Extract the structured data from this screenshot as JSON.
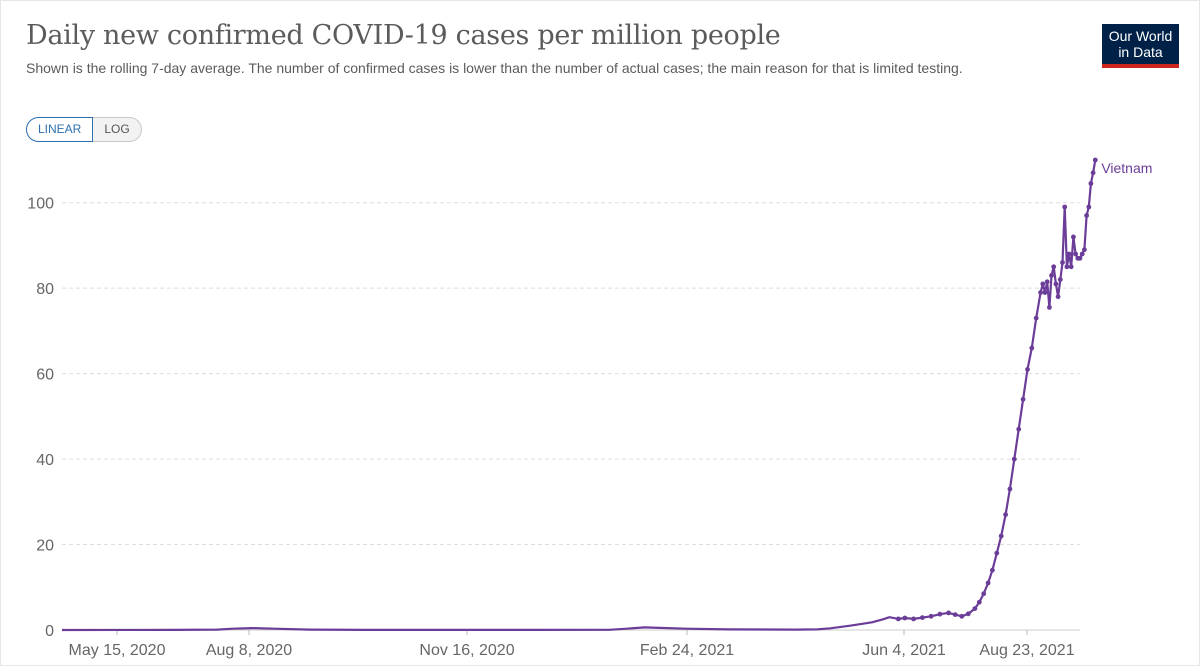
{
  "header": {
    "title": "Daily new confirmed COVID-19 cases per million people",
    "subtitle": "Shown is the rolling 7-day average. The number of confirmed cases is lower than the number of actual cases; the main reason for that is limited testing.",
    "logo_line1": "Our World",
    "logo_line2": "in Data"
  },
  "controls": {
    "linear_label": "LINEAR",
    "log_label": "LOG",
    "selected": "LINEAR"
  },
  "colors": {
    "series": "#6b3d99",
    "grid": "#dddddd",
    "logo_bg": "#002147",
    "logo_accent": "#ce261e",
    "toggle_active": "#2d6fb0"
  },
  "chart_data": {
    "type": "line",
    "title": "Daily new confirmed COVID-19 cases per million people",
    "xlabel": "",
    "ylabel": "",
    "x_axis": {
      "type": "date",
      "range": [
        "2020-05-15",
        "2021-08-23"
      ],
      "tick_labels": [
        "May 15, 2020",
        "Aug 8, 2020",
        "Nov 16, 2020",
        "Feb 24, 2021",
        "Jun 4, 2021",
        "Aug 23, 2021"
      ]
    },
    "y_axis": {
      "ylim": [
        0,
        110
      ],
      "ticks": [
        0,
        20,
        40,
        60,
        80,
        100
      ]
    },
    "grid": true,
    "legend": "end-of-line label",
    "series": [
      {
        "name": "Vietnam",
        "points": [
          [
            "2020-05-15",
            0.0
          ],
          [
            "2020-07-05",
            0.02
          ],
          [
            "2020-07-25",
            0.1
          ],
          [
            "2020-08-01",
            0.3
          ],
          [
            "2020-08-10",
            0.45
          ],
          [
            "2020-08-20",
            0.3
          ],
          [
            "2020-09-05",
            0.1
          ],
          [
            "2020-10-01",
            0.02
          ],
          [
            "2020-12-15",
            0.02
          ],
          [
            "2021-01-20",
            0.05
          ],
          [
            "2021-01-28",
            0.3
          ],
          [
            "2021-02-05",
            0.6
          ],
          [
            "2021-02-12",
            0.5
          ],
          [
            "2021-02-24",
            0.3
          ],
          [
            "2021-03-15",
            0.15
          ],
          [
            "2021-04-15",
            0.1
          ],
          [
            "2021-04-25",
            0.15
          ],
          [
            "2021-05-01",
            0.4
          ],
          [
            "2021-05-10",
            1.0
          ],
          [
            "2021-05-20",
            1.8
          ],
          [
            "2021-05-25",
            2.5
          ],
          [
            "2021-05-28",
            3.0
          ],
          [
            "2021-06-01",
            2.6
          ],
          [
            "2021-06-04",
            2.8
          ],
          [
            "2021-06-08",
            2.6
          ],
          [
            "2021-06-12",
            2.9
          ],
          [
            "2021-06-16",
            3.2
          ],
          [
            "2021-06-20",
            3.7
          ],
          [
            "2021-06-24",
            4.0
          ],
          [
            "2021-06-27",
            3.6
          ],
          [
            "2021-06-30",
            3.2
          ],
          [
            "2021-07-03",
            3.8
          ],
          [
            "2021-07-06",
            5.0
          ],
          [
            "2021-07-08",
            6.5
          ],
          [
            "2021-07-10",
            8.5
          ],
          [
            "2021-07-12",
            11
          ],
          [
            "2021-07-14",
            14
          ],
          [
            "2021-07-16",
            18
          ],
          [
            "2021-07-18",
            22
          ],
          [
            "2021-07-20",
            27
          ],
          [
            "2021-07-22",
            33
          ],
          [
            "2021-07-24",
            40
          ],
          [
            "2021-07-26",
            47
          ],
          [
            "2021-07-28",
            54
          ],
          [
            "2021-07-30",
            61
          ],
          [
            "2021-08-01",
            66
          ],
          [
            "2021-08-03",
            73
          ],
          [
            "2021-08-05",
            79
          ],
          [
            "2021-08-06",
            81
          ],
          [
            "2021-08-07",
            79
          ],
          [
            "2021-08-08",
            81.5
          ],
          [
            "2021-08-09",
            75.5
          ],
          [
            "2021-08-10",
            83
          ],
          [
            "2021-08-11",
            85
          ],
          [
            "2021-08-12",
            81
          ],
          [
            "2021-08-13",
            78
          ],
          [
            "2021-08-14",
            82
          ],
          [
            "2021-08-15",
            86
          ],
          [
            "2021-08-16",
            99
          ],
          [
            "2021-08-17",
            85
          ],
          [
            "2021-08-18",
            88
          ],
          [
            "2021-08-19",
            85
          ],
          [
            "2021-08-20",
            92
          ],
          [
            "2021-08-21",
            88
          ],
          [
            "2021-08-22",
            87
          ],
          [
            "2021-08-23",
            87
          ],
          [
            "2021-08-24",
            88
          ],
          [
            "2021-08-25",
            89
          ],
          [
            "2021-08-26",
            97
          ],
          [
            "2021-08-27",
            99
          ],
          [
            "2021-08-28",
            104.5
          ],
          [
            "2021-08-29",
            107
          ],
          [
            "2021-08-30",
            110
          ]
        ]
      }
    ]
  }
}
